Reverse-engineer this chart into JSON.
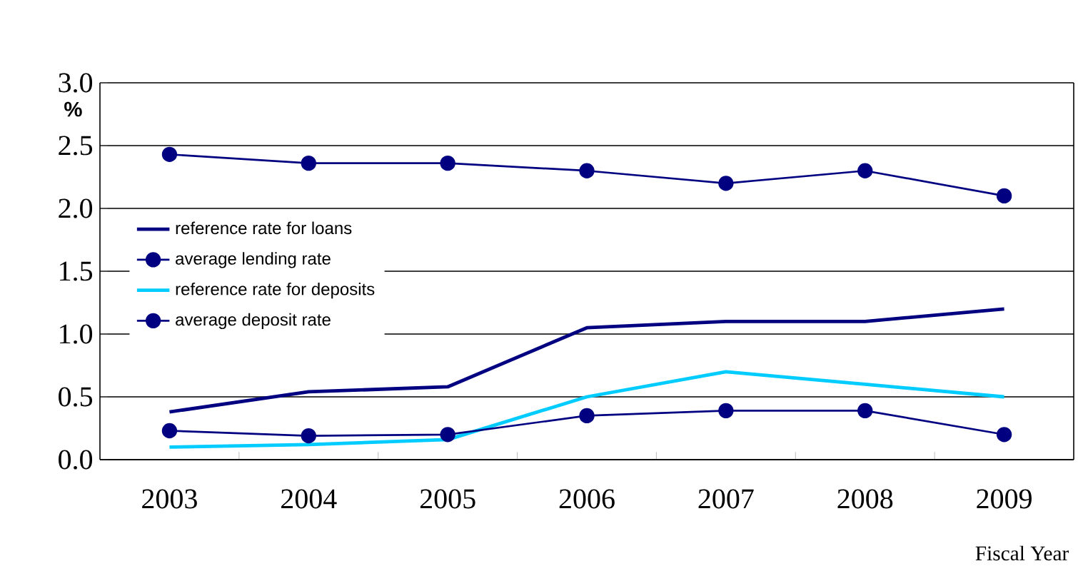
{
  "chart_data": {
    "type": "line",
    "ylabel": "%",
    "xlabel": "Fiscal Year",
    "categories": [
      "2003",
      "2004",
      "2005",
      "2006",
      "2007",
      "2008",
      "2009"
    ],
    "series": [
      {
        "name": "reference rate for loans",
        "color": "#000080",
        "marker": "none",
        "values": [
          0.38,
          0.54,
          0.58,
          1.05,
          1.1,
          1.1,
          1.2
        ]
      },
      {
        "name": "average lending rate",
        "color": "#000080",
        "marker": "circle",
        "values": [
          2.43,
          2.36,
          2.36,
          2.3,
          2.2,
          2.3,
          2.1
        ]
      },
      {
        "name": "reference rate for deposits",
        "color": "#00ccff",
        "marker": "none",
        "values": [
          0.1,
          0.12,
          0.16,
          0.5,
          0.7,
          0.6,
          0.5
        ]
      },
      {
        "name": "average deposit rate",
        "color": "#000080",
        "marker": "circle",
        "values": [
          0.23,
          0.19,
          0.2,
          0.35,
          0.39,
          0.39,
          0.2
        ]
      }
    ],
    "ylim": [
      0,
      3.0
    ],
    "yticks": [
      {
        "value": 0,
        "label": "0.0"
      },
      {
        "value": 0.5,
        "label": "0.5"
      },
      {
        "value": 1.0,
        "label": "1.0"
      },
      {
        "value": 1.5,
        "label": "1.5"
      },
      {
        "value": 2.0,
        "label": "2.0"
      },
      {
        "value": 2.5,
        "label": "2.5"
      },
      {
        "value": 3.0,
        "label": "3.0"
      }
    ],
    "grid": "y",
    "legend": "left"
  }
}
